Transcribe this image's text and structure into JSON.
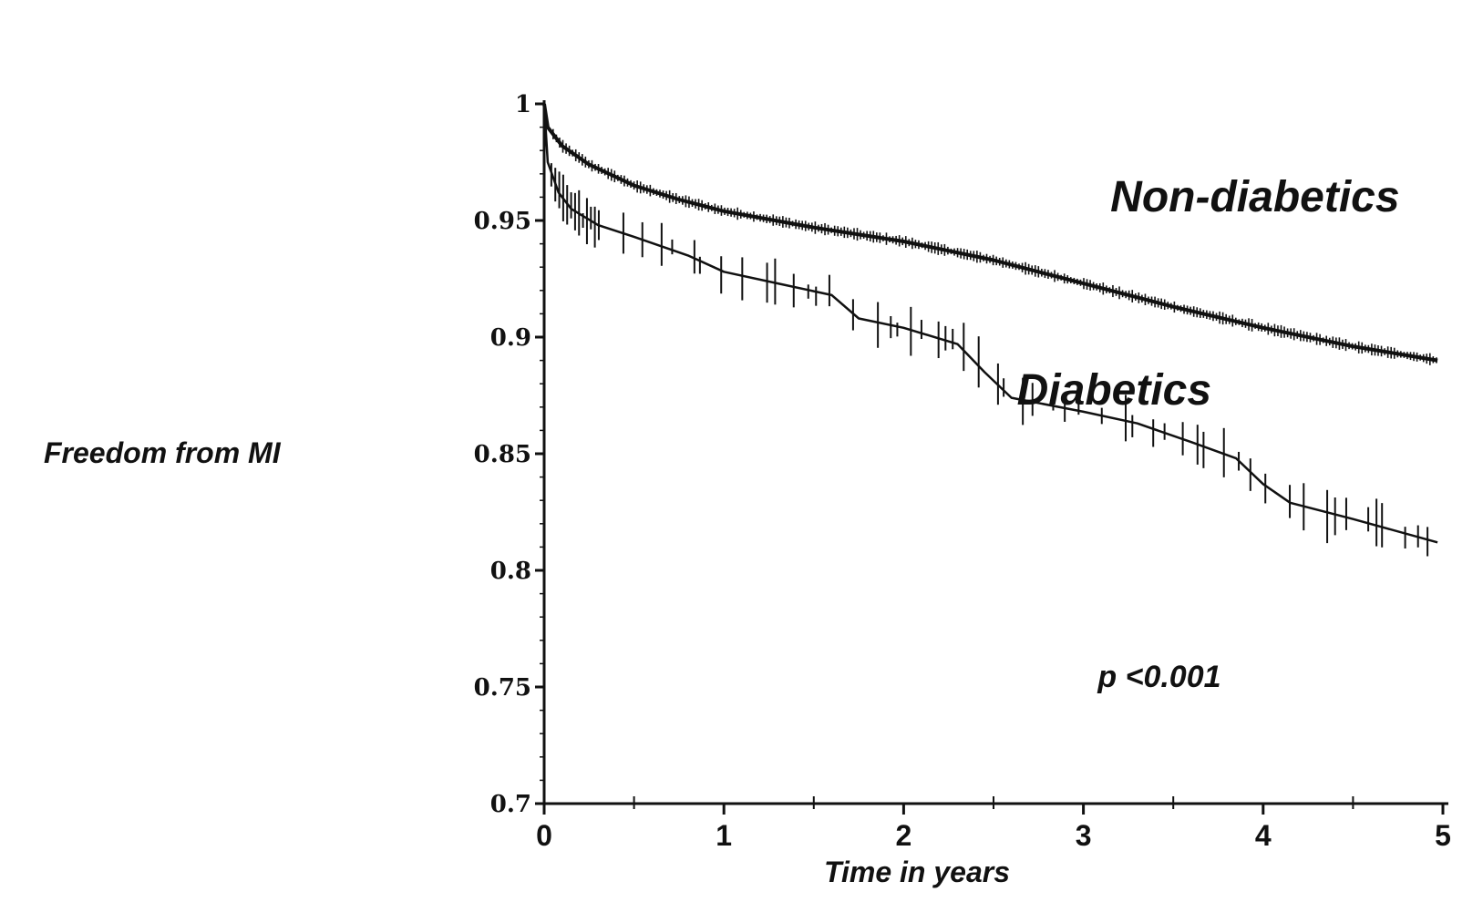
{
  "chart_data": {
    "type": "line",
    "subtype": "kaplan-meier",
    "title": "",
    "xlabel": "Time in years",
    "ylabel": "Freedom from MI",
    "xlim": [
      0,
      5
    ],
    "ylim": [
      0.7,
      1
    ],
    "x_ticks": [
      0,
      1,
      2,
      3,
      4,
      5
    ],
    "x_tick_labels": [
      "0",
      "1",
      "2",
      "3",
      "4",
      "5"
    ],
    "y_ticks": [
      1,
      0.95,
      0.9,
      0.85,
      0.8,
      0.75,
      0.7
    ],
    "y_tick_labels": [
      "1",
      "0.95",
      "0.9",
      "0.85",
      "0.8",
      "0.75",
      "0.7"
    ],
    "grid": false,
    "series": [
      {
        "name": "Non-diabetics",
        "points": [
          [
            0,
            1.0
          ],
          [
            0.02,
            0.99
          ],
          [
            0.1,
            0.982
          ],
          [
            0.25,
            0.974
          ],
          [
            0.5,
            0.965
          ],
          [
            0.75,
            0.959
          ],
          [
            1.0,
            0.954
          ],
          [
            1.5,
            0.947
          ],
          [
            2.0,
            0.941
          ],
          [
            2.5,
            0.933
          ],
          [
            3.0,
            0.923
          ],
          [
            3.5,
            0.913
          ],
          [
            4.0,
            0.904
          ],
          [
            4.5,
            0.896
          ],
          [
            4.97,
            0.89
          ]
        ]
      },
      {
        "name": "Diabetics",
        "points": [
          [
            0,
            1.0
          ],
          [
            0.02,
            0.975
          ],
          [
            0.08,
            0.962
          ],
          [
            0.15,
            0.955
          ],
          [
            0.3,
            0.948
          ],
          [
            0.5,
            0.943
          ],
          [
            0.8,
            0.935
          ],
          [
            1.0,
            0.928
          ],
          [
            1.3,
            0.923
          ],
          [
            1.6,
            0.918
          ],
          [
            1.75,
            0.908
          ],
          [
            2.0,
            0.904
          ],
          [
            2.3,
            0.897
          ],
          [
            2.45,
            0.885
          ],
          [
            2.6,
            0.874
          ],
          [
            3.0,
            0.868
          ],
          [
            3.3,
            0.863
          ],
          [
            3.6,
            0.855
          ],
          [
            3.85,
            0.848
          ],
          [
            4.0,
            0.837
          ],
          [
            4.15,
            0.829
          ],
          [
            4.5,
            0.822
          ],
          [
            4.97,
            0.812
          ]
        ]
      }
    ],
    "annotations": [
      {
        "text": "Non-diabetics",
        "x": 3.15,
        "y": 0.954
      },
      {
        "text": "Diabetics",
        "x": 2.63,
        "y": 0.871
      },
      {
        "text": "p <0.001",
        "x": 3.08,
        "y": 0.75
      }
    ]
  }
}
